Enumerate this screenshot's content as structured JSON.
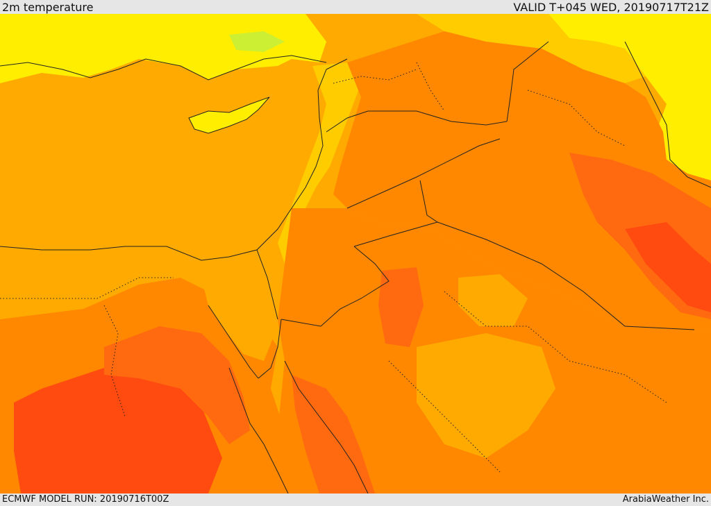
{
  "header": {
    "field_title": "2m temperature",
    "valid_time": "VALID T+045 WED, 20190717T21Z"
  },
  "footer": {
    "model_run": "ECMWF MODEL RUN: 20190716T00Z",
    "credit": "ArabiaWeather Inc."
  },
  "map": {
    "colors": {
      "sea": "#ffaa00",
      "coolest": "#ccee33",
      "cool": "#ffee00",
      "mild": "#ffcc00",
      "warm": "#ffaa00",
      "hot": "#ff8800",
      "hotter": "#ff6a10",
      "hottest": "#ff4a10",
      "borders": "#222222"
    }
  }
}
